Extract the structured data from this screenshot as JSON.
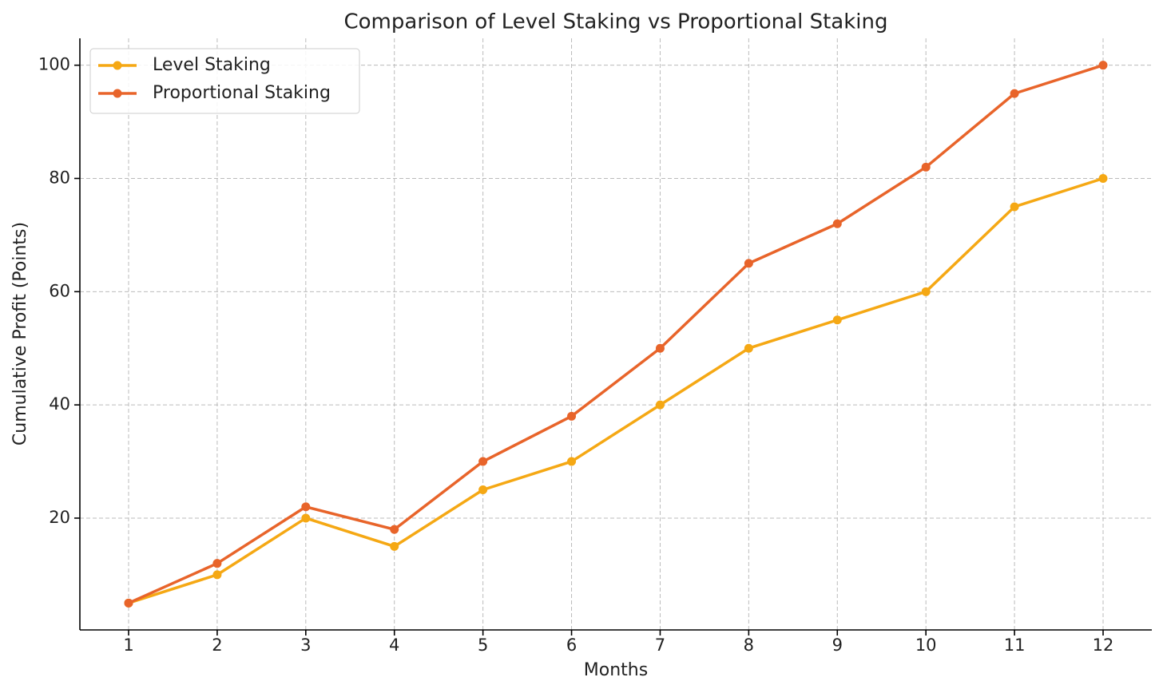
{
  "chart_data": {
    "type": "line",
    "title": "Comparison of Level Staking vs Proportional Staking",
    "x_label": "Months",
    "y_label": "Cumulative Profit (Points)",
    "x": [
      1,
      2,
      3,
      4,
      5,
      6,
      7,
      8,
      9,
      10,
      11,
      12
    ],
    "series": [
      {
        "name": "Level Staking",
        "color": "#f5a814",
        "values": [
          5,
          10,
          20,
          15,
          25,
          30,
          40,
          50,
          55,
          60,
          75,
          80
        ]
      },
      {
        "name": "Proportional Staking",
        "color": "#e8642a",
        "values": [
          5,
          12,
          22,
          18,
          30,
          38,
          50,
          65,
          72,
          82,
          95,
          100
        ]
      }
    ],
    "xlim": [
      0.45,
      12.55
    ],
    "xticks": [
      1,
      2,
      3,
      4,
      5,
      6,
      7,
      8,
      9,
      10,
      11,
      12
    ],
    "ylim": [
      0.25,
      104.75
    ],
    "yticks": [
      20,
      40,
      60,
      80,
      100
    ],
    "grid": true,
    "legend": "upper-left"
  }
}
